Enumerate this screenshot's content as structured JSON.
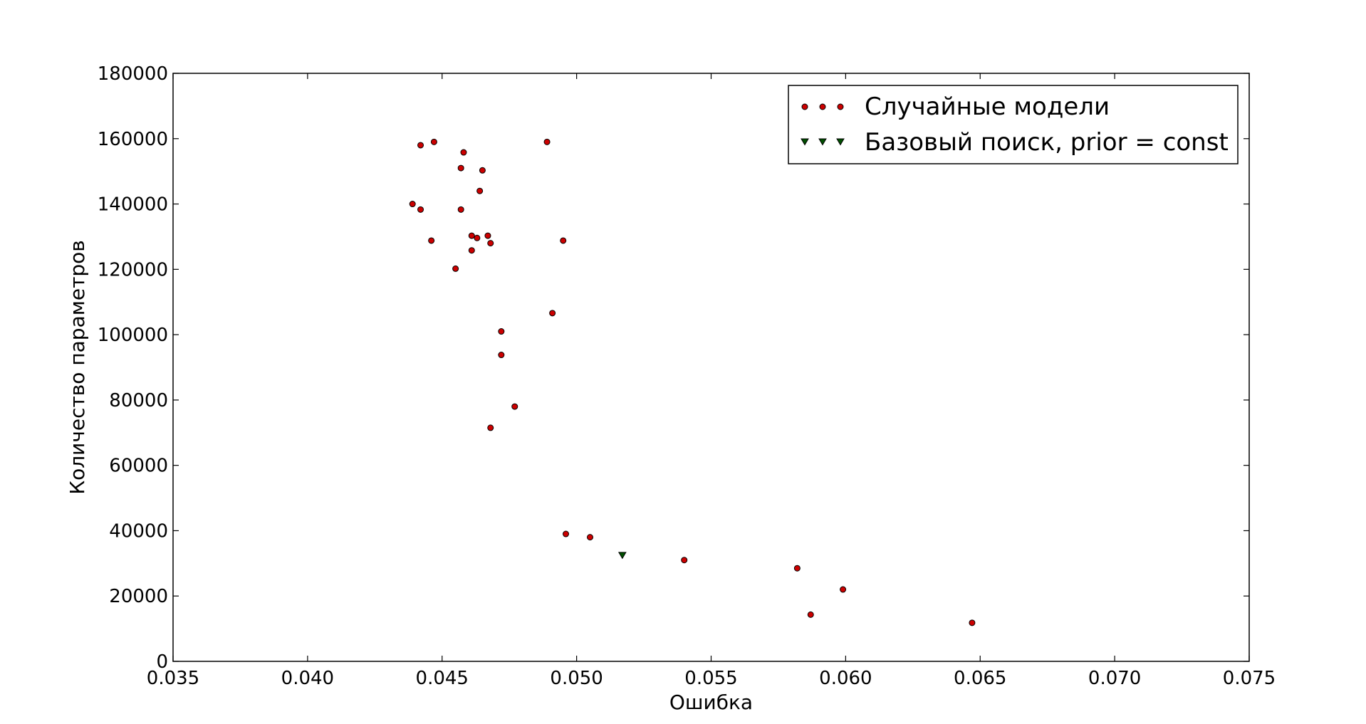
{
  "chart_data": {
    "type": "scatter",
    "title": "",
    "xlabel": "Ошибка",
    "ylabel": "Количество параметров",
    "xlim": [
      0.035,
      0.075
    ],
    "ylim": [
      0,
      180000
    ],
    "x_ticks": [
      0.035,
      0.04,
      0.045,
      0.05,
      0.055,
      0.06,
      0.065,
      0.07,
      0.075
    ],
    "x_tick_labels": [
      "0.035",
      "0.040",
      "0.045",
      "0.050",
      "0.055",
      "0.060",
      "0.065",
      "0.070",
      "0.075"
    ],
    "y_ticks": [
      0,
      20000,
      40000,
      60000,
      80000,
      100000,
      120000,
      140000,
      160000,
      180000
    ],
    "y_tick_labels": [
      "0",
      "20000",
      "40000",
      "60000",
      "80000",
      "100000",
      "120000",
      "140000",
      "160000",
      "180000"
    ],
    "grid": false,
    "legend_position": "top-right",
    "series": [
      {
        "name": "Случайные модели",
        "marker": "circle",
        "color": "#cc0000",
        "points": [
          [
            0.0439,
            140000
          ],
          [
            0.0442,
            158000
          ],
          [
            0.0442,
            138300
          ],
          [
            0.0446,
            128800
          ],
          [
            0.0447,
            159000
          ],
          [
            0.0455,
            120200
          ],
          [
            0.0457,
            151000
          ],
          [
            0.0457,
            138300
          ],
          [
            0.0458,
            155800
          ],
          [
            0.0461,
            130300
          ],
          [
            0.0461,
            125800
          ],
          [
            0.0463,
            129600
          ],
          [
            0.0464,
            144000
          ],
          [
            0.0465,
            150300
          ],
          [
            0.0467,
            130300
          ],
          [
            0.0468,
            128000
          ],
          [
            0.0468,
            71500
          ],
          [
            0.0472,
            101000
          ],
          [
            0.0472,
            93800
          ],
          [
            0.0477,
            78000
          ],
          [
            0.0489,
            159000
          ],
          [
            0.0491,
            106600
          ],
          [
            0.0495,
            128800
          ],
          [
            0.0496,
            39000
          ],
          [
            0.0505,
            38000
          ],
          [
            0.054,
            31000
          ],
          [
            0.0582,
            28500
          ],
          [
            0.0587,
            14300
          ],
          [
            0.0599,
            22000
          ],
          [
            0.0647,
            11800
          ]
        ]
      },
      {
        "name": "Базовый поиск, prior = const",
        "marker": "triangle-down",
        "color": "#005000",
        "points": [
          [
            0.0517,
            32500
          ]
        ]
      }
    ]
  }
}
